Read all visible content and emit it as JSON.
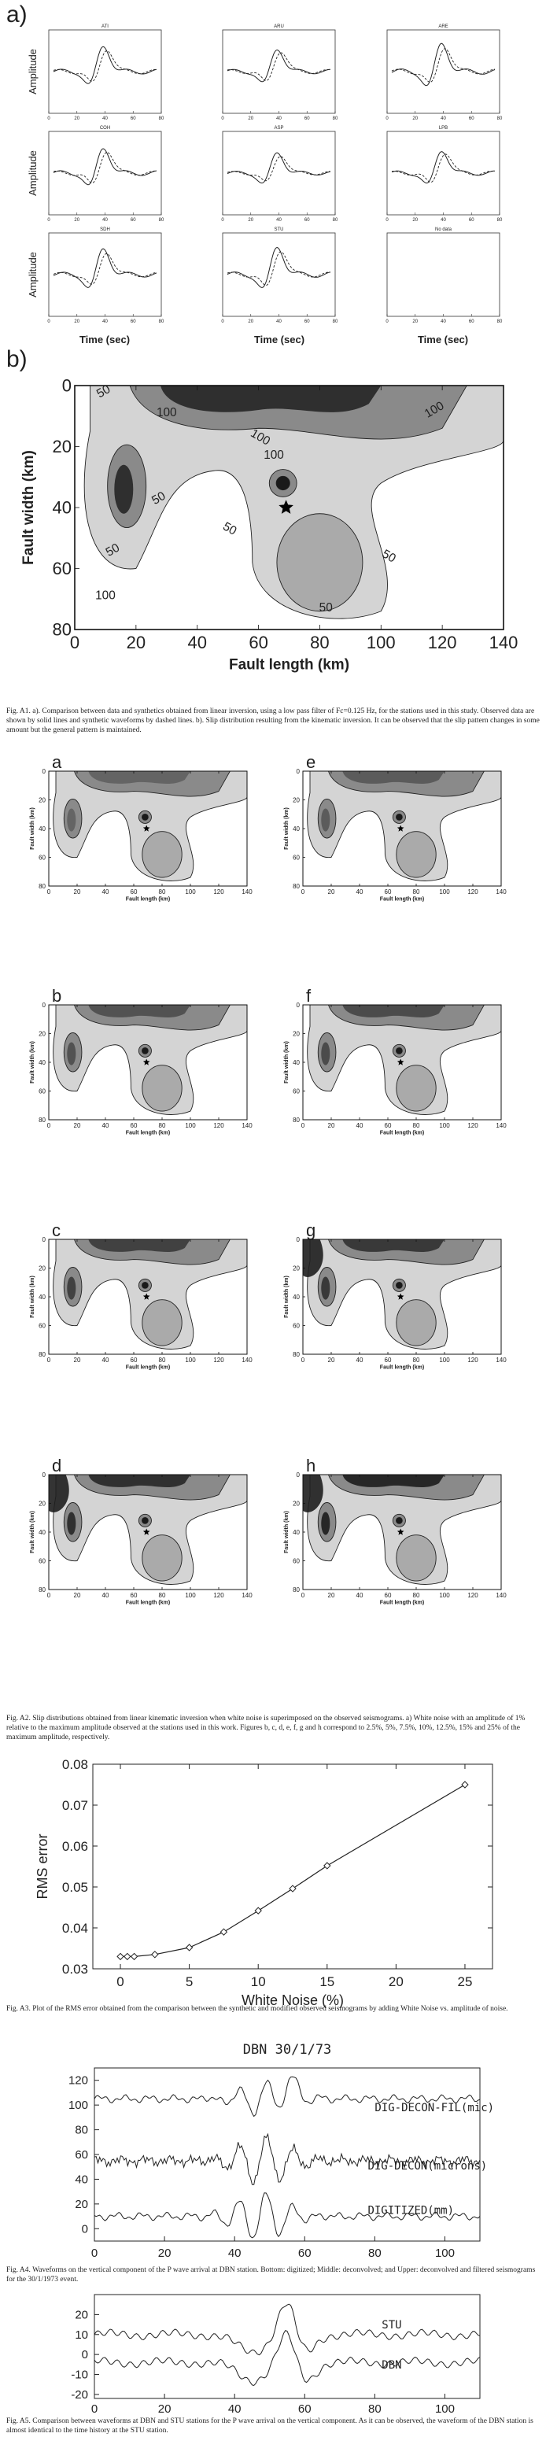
{
  "fig_a1": {
    "panel_a_label": "a)",
    "panel_b_label": "b)",
    "ylabel_amplitude": "Amplitude",
    "xlabel_time": "Time (sec)",
    "stations": [
      "ATI",
      "ARU",
      "ARE",
      "COH",
      "ASP",
      "LPB",
      "SDH",
      "STU",
      "No data"
    ],
    "tick_labels": [
      "0",
      "20",
      "40",
      "60",
      "80"
    ],
    "slip": {
      "xlabel": "Fault length (km)",
      "ylabel": "Fault width (km)",
      "x_ticks": [
        "0",
        "20",
        "40",
        "60",
        "80",
        "100",
        "120",
        "140"
      ],
      "y_ticks": [
        "0",
        "20",
        "40",
        "60",
        "80"
      ],
      "contour_labels": [
        "50",
        "100",
        "100",
        "50",
        "100",
        "50",
        "50",
        "100",
        "50",
        "100",
        "50"
      ]
    },
    "caption": "Fig. A1. a). Comparison between data and synthetics obtained from linear inversion, using a low pass filter of Fc=0.125 Hz, for the stations used in this study. Observed data are shown by solid lines and synthetic waveforms by dashed lines. b). Slip distribution resulting from the kinematic inversion. It can be observed that the slip pattern changes in some amount but the general pattern is maintained."
  },
  "fig_a2": {
    "panels": [
      "a",
      "e",
      "b",
      "f",
      "c",
      "g",
      "d",
      "h"
    ],
    "ylabel": "Fault width (km)",
    "xlabel": "Fault length (km)",
    "x_ticks": [
      "0",
      "20",
      "40",
      "60",
      "80",
      "100",
      "120",
      "140"
    ],
    "y_ticks": [
      "0",
      "20",
      "40",
      "60",
      "80"
    ],
    "caption": "Fig. A2. Slip distributions obtained from linear kinematic inversion when white noise is superimposed on the observed seismograms. a) White noise with an amplitude of 1% relative to the maximum amplitude observed at the stations used in this work. Figures b, c, d, e, f, g and h correspond to 2.5%, 5%, 7.5%, 10%, 12.5%, 15% and 25% of the maximum amplitude, respectively."
  },
  "fig_a3": {
    "chart_data": {
      "type": "line",
      "title": "",
      "xlabel": "White Noise (%)",
      "ylabel": "RMS error",
      "xlim": [
        -2,
        27
      ],
      "ylim": [
        0.03,
        0.08
      ],
      "x_ticks": [
        "0",
        "5",
        "10",
        "15",
        "20",
        "25"
      ],
      "y_ticks": [
        "0.03",
        "0.04",
        "0.05",
        "0.06",
        "0.07",
        "0.08"
      ],
      "x": [
        0,
        0.5,
        1,
        2.5,
        5,
        7.5,
        10,
        12.5,
        15,
        25
      ],
      "y": [
        0.033,
        0.033,
        0.033,
        0.0335,
        0.0352,
        0.039,
        0.0442,
        0.0496,
        0.0552,
        0.075
      ],
      "marker": "diamond"
    },
    "caption": "Fig. A3. Plot of the RMS error obtained from the comparison between the synthetic and modified observed seismograms by adding White Noise vs. amplitude of noise."
  },
  "fig_a4": {
    "title": "DBN 30/1/73",
    "trace_labels": [
      "DIG-DECON-FIL(mic)",
      "DIG-DECON(microns)",
      "DIGITIZED(mm)"
    ],
    "y_ticks": [
      "120",
      "100",
      "80",
      "60",
      "40",
      "20",
      "0"
    ],
    "x_ticks": [
      "0",
      "20",
      "40",
      "60",
      "80",
      "100"
    ],
    "caption": "Fig. A4. Waveforms on the vertical component of the P wave arrival at DBN station. Bottom: digitized; Middle: deconvolved; and Upper: deconvolved and filtered seismograms for the 30/1/1973 event."
  },
  "fig_a5": {
    "trace_labels": [
      "STU",
      "DBN"
    ],
    "y_ticks": [
      "20",
      "10",
      "0",
      "-10",
      "-20"
    ],
    "x_ticks": [
      "0",
      "20",
      "40",
      "60",
      "80",
      "100"
    ],
    "caption": "Fig. A5. Comparison between waveforms at DBN and STU stations for the P wave arrival on the vertical component. As it can be observed, the waveform of the DBN station is almost identical to the time history at the STU station."
  }
}
